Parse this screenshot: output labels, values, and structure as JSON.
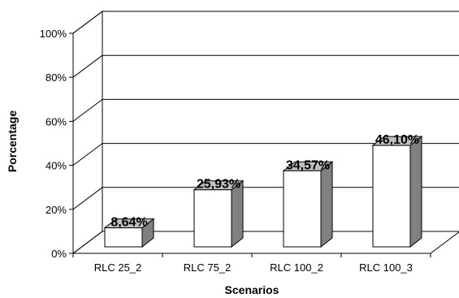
{
  "chart_data": {
    "type": "bar",
    "style": "3d-column",
    "categories": [
      "RLC 25_2",
      "RLC 75_2",
      "RLC 100_2",
      "RLC 100_3"
    ],
    "values": [
      8.64,
      25.93,
      34.57,
      46.1
    ],
    "data_labels": [
      "8,64%",
      "25,93%",
      "34,57%",
      "46,10%"
    ],
    "ylim": [
      0,
      100
    ],
    "y_ticks": [
      0,
      20,
      40,
      60,
      80,
      100
    ],
    "y_tick_labels": [
      "0%",
      "20%",
      "40%",
      "60%",
      "80%",
      "100%"
    ],
    "xlabel": "Scenarios",
    "ylabel": "Porcentage",
    "grid": true,
    "legend": "none",
    "colors": {
      "bar_front": "#ffffff",
      "bar_side": "#808080",
      "bar_top": "#c0c0c0",
      "edges": "#000000",
      "grid": "#000000"
    }
  }
}
